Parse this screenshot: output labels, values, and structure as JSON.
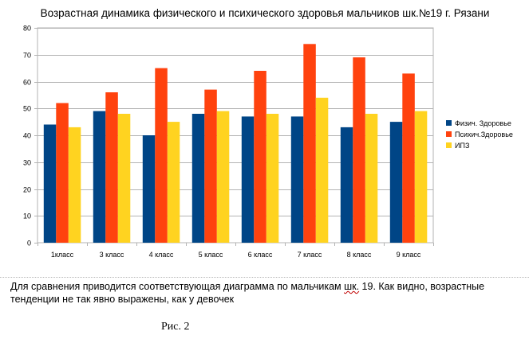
{
  "chart_data": {
    "type": "bar",
    "title": "Возрастная динамика физического и психического здоровья мальчиков шк.№19 г. Рязани",
    "categories": [
      "1класс",
      "3 класс",
      "4 класс",
      "5 класс",
      "6 класс",
      "7 класс",
      "8 класс",
      "9 класс"
    ],
    "series": [
      {
        "name": "Физич. Здоровье",
        "color": "#004586",
        "values": [
          44,
          49,
          40,
          48,
          47,
          47,
          43,
          45
        ]
      },
      {
        "name": "Психич.Здоровье",
        "color": "#ff420e",
        "values": [
          52,
          56,
          65,
          57,
          64,
          74,
          69,
          63
        ]
      },
      {
        "name": "ИПЗ",
        "color": "#ffd320",
        "values": [
          43,
          48,
          45,
          49,
          48,
          54,
          48,
          49
        ]
      }
    ],
    "ylim": [
      0,
      80
    ],
    "yticks": [
      0,
      10,
      20,
      30,
      40,
      50,
      60,
      70,
      80
    ],
    "grid": true,
    "legend_position": "right"
  },
  "caption": {
    "part1": "Для сравнения приводится соответствующая диаграмма по мальчикам ",
    "underlined": "шк.",
    "part2": " 19. Как видно, возрастные тенденции не так явно выражены, как у девочек"
  },
  "figure_label": "Рис. 2"
}
